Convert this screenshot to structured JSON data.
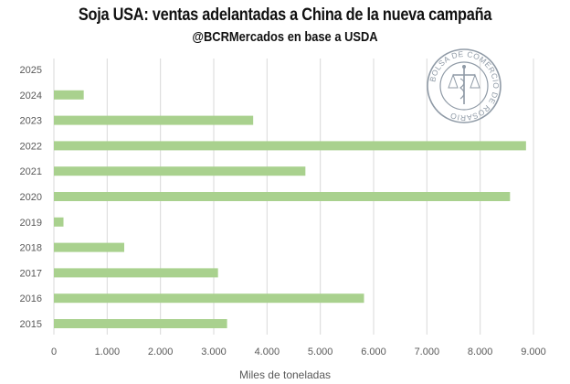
{
  "chart_data": {
    "type": "bar",
    "orientation": "horizontal",
    "title": "Soja USA: ventas adelantadas a China de la nueva campaña",
    "subtitle": "@BCRMercados en base a USDA",
    "xlabel": "Miles de toneladas",
    "ylabel": "",
    "categories": [
      "2015",
      "2016",
      "2017",
      "2018",
      "2019",
      "2020",
      "2021",
      "2022",
      "2023",
      "2024",
      "2025"
    ],
    "values": [
      3250,
      5820,
      3080,
      1320,
      180,
      8560,
      4720,
      8860,
      3740,
      560,
      0
    ],
    "xlim": [
      0,
      9000
    ],
    "xticks": [
      0,
      1000,
      2000,
      3000,
      4000,
      5000,
      6000,
      7000,
      8000,
      9000
    ],
    "xtick_labels": [
      "0",
      "1.000",
      "2.000",
      "3.000",
      "4.000",
      "5.000",
      "6.000",
      "7.000",
      "8.000",
      "9.000"
    ],
    "grid": true,
    "bar_color": "#a9d18e",
    "grid_color": "#d9d9d9"
  },
  "logo": {
    "text": "BOLSA DE COMERCIO DE ROSARIO"
  }
}
